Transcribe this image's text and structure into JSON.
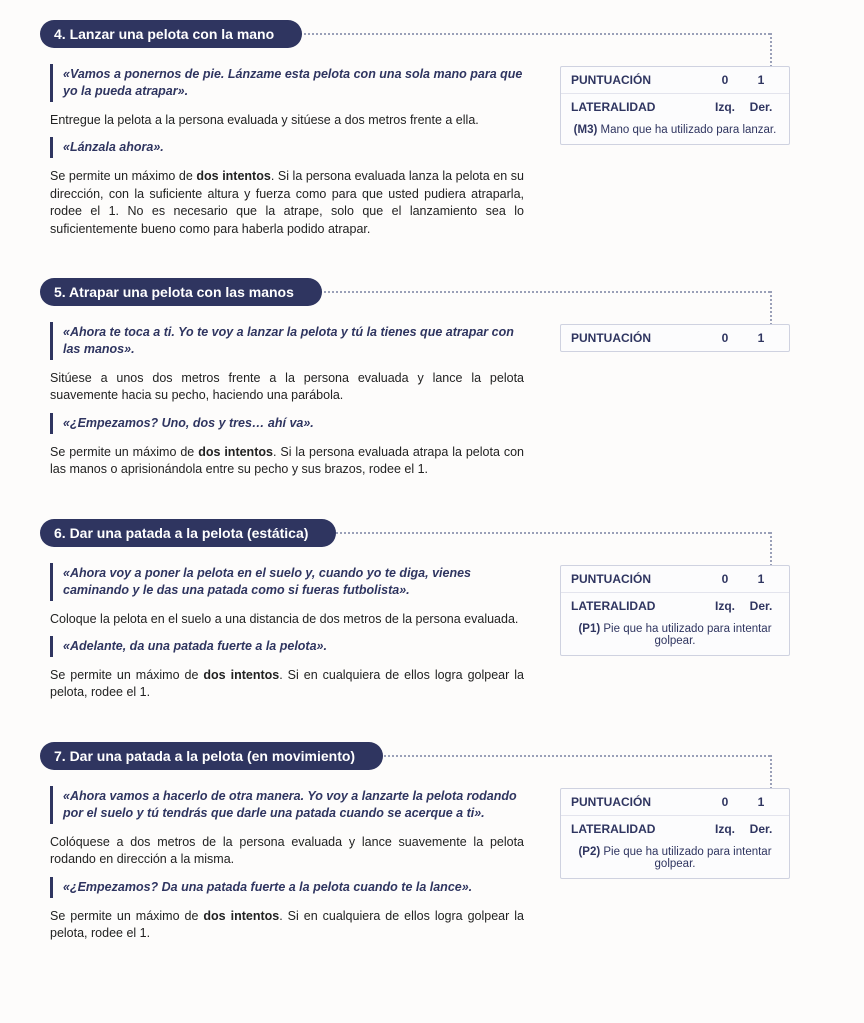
{
  "sections": [
    {
      "heading": "4. Lanzar una pelota con la mano",
      "quotes": [
        "«Vamos a ponernos de pie. Lánzame esta pelota con una sola mano para que yo la pueda atrapar».",
        "«Lánzala ahora».",
        null
      ],
      "paras": [
        "Entregue la pelota a la persona evaluada y sitúese a dos metros frente a ella.",
        "Se permite un máximo de dos intentos. Si la persona evaluada lanza la pelota en su dirección, con la suficiente altura y fuerza como para que usted pudiera atraparla, rodee el 1. No es necesario que la atrape, solo que el lanzamiento sea lo suficientemente bueno como para haberla podido atrapar."
      ],
      "score": {
        "punt_label": "PUNTUACIÓN",
        "punt_a": "0",
        "punt_b": "1",
        "lat_label": "LATERALIDAD",
        "lat_a": "Izq.",
        "lat_b": "Der.",
        "note_code": "(M3)",
        "note_text": " Mano que ha utilizado para lanzar."
      }
    },
    {
      "heading": "5. Atrapar una pelota con las manos",
      "quotes": [
        "«Ahora te toca a ti. Yo te voy a lanzar la pelota y tú la tienes que atrapar con las manos».",
        "«¿Empezamos? Uno, dos y tres… ahí va».",
        null
      ],
      "paras": [
        "Sitúese a unos dos metros frente a la persona evaluada y lance la pelota suavemente hacia su pecho, haciendo una parábola.",
        "Se permite un máximo de dos intentos. Si la persona evaluada atrapa la pelota con las manos o aprisionándola entre su pecho y sus brazos, rodee el 1."
      ],
      "score": {
        "punt_label": "PUNTUACIÓN",
        "punt_a": "0",
        "punt_b": "1",
        "lat_label": null,
        "lat_a": null,
        "lat_b": null,
        "note_code": null,
        "note_text": null
      }
    },
    {
      "heading": "6. Dar una patada a la pelota (estática)",
      "quotes": [
        "«Ahora voy a poner la pelota en el suelo y, cuando yo te diga, vienes caminando y le das una patada como si fueras futbolista».",
        "«Adelante, da una patada fuerte a la pelota».",
        null
      ],
      "paras": [
        "Coloque la pelota en el suelo a una distancia de dos metros de la persona evaluada.",
        "Se permite un máximo de dos intentos. Si en cualquiera de ellos logra golpear la pelota, rodee el 1."
      ],
      "score": {
        "punt_label": "PUNTUACIÓN",
        "punt_a": "0",
        "punt_b": "1",
        "lat_label": "LATERALIDAD",
        "lat_a": "Izq.",
        "lat_b": "Der.",
        "note_code": "(P1)",
        "note_text": " Pie que ha utilizado para intentar golpear."
      }
    },
    {
      "heading": "7. Dar una patada a la pelota (en movimiento)",
      "quotes": [
        "«Ahora vamos a hacerlo de otra manera. Yo voy a lanzarte la pelota rodando por el suelo y tú tendrás que darle una patada cuando se acerque a ti».",
        "«¿Empezamos? Da una patada fuerte a la pelota cuando te la lance».",
        null
      ],
      "paras": [
        "Colóquese a dos metros de la persona evaluada y lance suavemente la pelota rodando en dirección a la misma.",
        "Se permite un máximo de dos intentos. Si en cualquiera de ellos logra golpear la pelota, rodee el 1."
      ],
      "score": {
        "punt_label": "PUNTUACIÓN",
        "punt_a": "0",
        "punt_b": "1",
        "lat_label": "LATERALIDAD",
        "lat_a": "Izq.",
        "lat_b": "Der.",
        "note_code": "(P2)",
        "note_text": " Pie que ha utilizado para intentar golpear."
      }
    }
  ]
}
